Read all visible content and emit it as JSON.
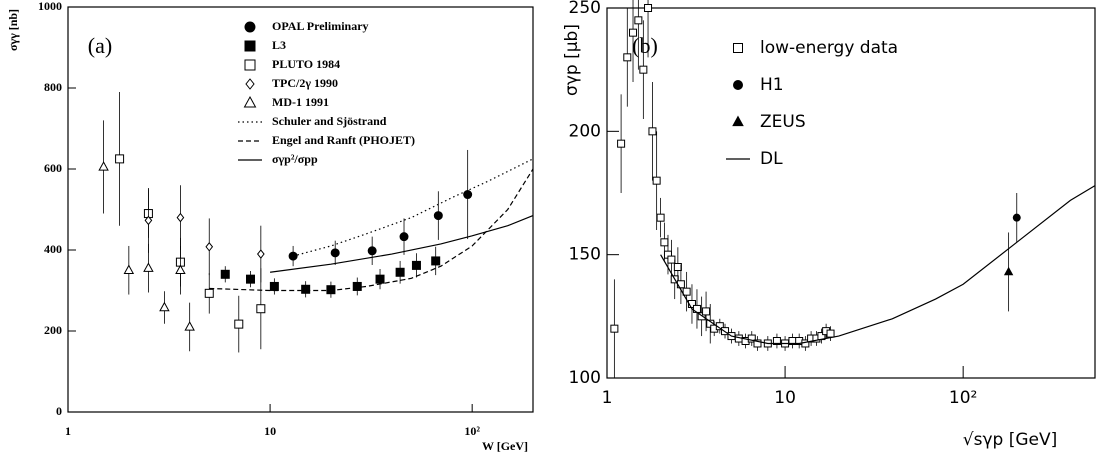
{
  "chart_data": [
    {
      "type": "scatter",
      "panel_label": "(a)",
      "x_label": "W [GeV]",
      "y_label": "σγγ [nb]",
      "xscale": "log",
      "xlim": [
        1,
        200
      ],
      "ylim": [
        0,
        1000
      ],
      "xticks": [
        1,
        10,
        {
          "value": 100,
          "label": "10²"
        }
      ],
      "yticks": [
        0,
        200,
        400,
        600,
        800,
        1000
      ],
      "series": [
        {
          "name": "OPAL Preliminary",
          "marker": "circle-filled",
          "color": "#000",
          "x": [
            13,
            21,
            32,
            46,
            68,
            95
          ],
          "values": [
            385,
            393,
            398,
            433,
            485,
            537
          ],
          "errors": [
            25,
            30,
            35,
            45,
            60,
            110
          ]
        },
        {
          "name": "L3",
          "marker": "square-filled",
          "color": "#000",
          "x": [
            6,
            8,
            10.5,
            15,
            20,
            27,
            35,
            44,
            53,
            66
          ],
          "values": [
            340,
            328,
            310,
            303,
            302,
            310,
            328,
            345,
            362,
            373
          ],
          "errors": [
            20,
            20,
            20,
            20,
            20,
            22,
            25,
            28,
            30,
            35
          ]
        },
        {
          "name": "PLUTO 1984",
          "marker": "square-open",
          "color": "#000",
          "x": [
            1.8,
            2.5,
            3.6,
            5,
            7,
            9
          ],
          "values": [
            625,
            490,
            370,
            293,
            217,
            255
          ],
          "errors": [
            165,
            60,
            60,
            50,
            70,
            100
          ]
        },
        {
          "name": "TPC/2γ 1990",
          "marker": "diamond-open",
          "color": "#000",
          "x": [
            2.5,
            3.6,
            5,
            9
          ],
          "values": [
            473,
            480,
            408,
            390
          ],
          "errors": [
            80,
            80,
            70,
            70
          ]
        },
        {
          "name": "MD-1 1991",
          "marker": "triangle-open",
          "color": "#000",
          "x": [
            1.5,
            2,
            2.5,
            3,
            3.6,
            4
          ],
          "values": [
            605,
            350,
            355,
            258,
            350,
            210
          ],
          "errors": [
            115,
            60,
            60,
            40,
            60,
            60
          ]
        },
        {
          "name": "Schuler and Sjöstrand",
          "line": "dotted",
          "color": "#000",
          "x": [
            13,
            20,
            30,
            50,
            80,
            120,
            200
          ],
          "values": [
            385,
            410,
            440,
            480,
            530,
            570,
            625
          ]
        },
        {
          "name": "Engel and Ranft (PHOJET)",
          "line": "dashed",
          "color": "#000",
          "x": [
            5,
            10,
            20,
            30,
            50,
            70,
            100,
            150,
            200
          ],
          "values": [
            305,
            300,
            300,
            310,
            330,
            360,
            410,
            500,
            600
          ]
        },
        {
          "name": "σγp²/σpp",
          "line": "solid",
          "color": "#000",
          "x": [
            10,
            20,
            40,
            70,
            100,
            150,
            200
          ],
          "values": [
            345,
            365,
            390,
            415,
            435,
            460,
            485
          ]
        }
      ]
    },
    {
      "type": "scatter",
      "panel_label": "(b)",
      "x_label": "√sγp [GeV]",
      "y_label": "σγp [μb]",
      "xscale": "log",
      "xlim": [
        1,
        550
      ],
      "ylim": [
        100,
        250
      ],
      "xticks": [
        1,
        10,
        {
          "value": 100,
          "label": "10²"
        }
      ],
      "yticks": [
        100,
        150,
        200,
        250
      ],
      "series": [
        {
          "name": "low-energy data",
          "marker": "square-open",
          "color": "#000",
          "x": [
            1.1,
            1.2,
            1.3,
            1.4,
            1.5,
            1.6,
            1.7,
            1.8,
            1.9,
            2.0,
            2.1,
            2.2,
            2.3,
            2.4,
            2.5,
            2.6,
            2.8,
            3.0,
            3.2,
            3.4,
            3.6,
            3.8,
            4.0,
            4.3,
            4.6,
            5.0,
            5.5,
            6.0,
            6.5,
            7,
            8,
            9,
            10,
            11,
            12,
            13,
            14,
            15,
            16,
            17,
            18
          ],
          "values": [
            120,
            195,
            230,
            240,
            245,
            225,
            250,
            200,
            180,
            165,
            155,
            150,
            148,
            140,
            145,
            138,
            135,
            130,
            128,
            125,
            127,
            122,
            120,
            121,
            119,
            117,
            116,
            115,
            116,
            114,
            114,
            115,
            114,
            115,
            115,
            114,
            116,
            116,
            117,
            119,
            118
          ],
          "errors": [
            20,
            20,
            20,
            20,
            20,
            20,
            20,
            20,
            20,
            8,
            8,
            8,
            8,
            8,
            8,
            8,
            8,
            8,
            8,
            8,
            8,
            8,
            3,
            3,
            3,
            3,
            3,
            3,
            3,
            3,
            3,
            3,
            3,
            3,
            3,
            3,
            3,
            3,
            3,
            3,
            3
          ]
        },
        {
          "name": "H1",
          "marker": "circle-filled",
          "color": "#000",
          "x": [
            200
          ],
          "values": [
            165
          ],
          "errors": [
            10
          ]
        },
        {
          "name": "ZEUS",
          "marker": "triangle-filled",
          "color": "#000",
          "x": [
            180
          ],
          "values": [
            143
          ],
          "errors": [
            16
          ]
        },
        {
          "name": "DL",
          "line": "solid",
          "color": "#000",
          "x": [
            2,
            3,
            5,
            8,
            12,
            20,
            40,
            70,
            100,
            200,
            400,
            550
          ],
          "values": [
            150,
            128,
            117,
            114,
            114,
            117,
            124,
            132,
            138,
            155,
            172,
            178
          ]
        }
      ]
    }
  ]
}
